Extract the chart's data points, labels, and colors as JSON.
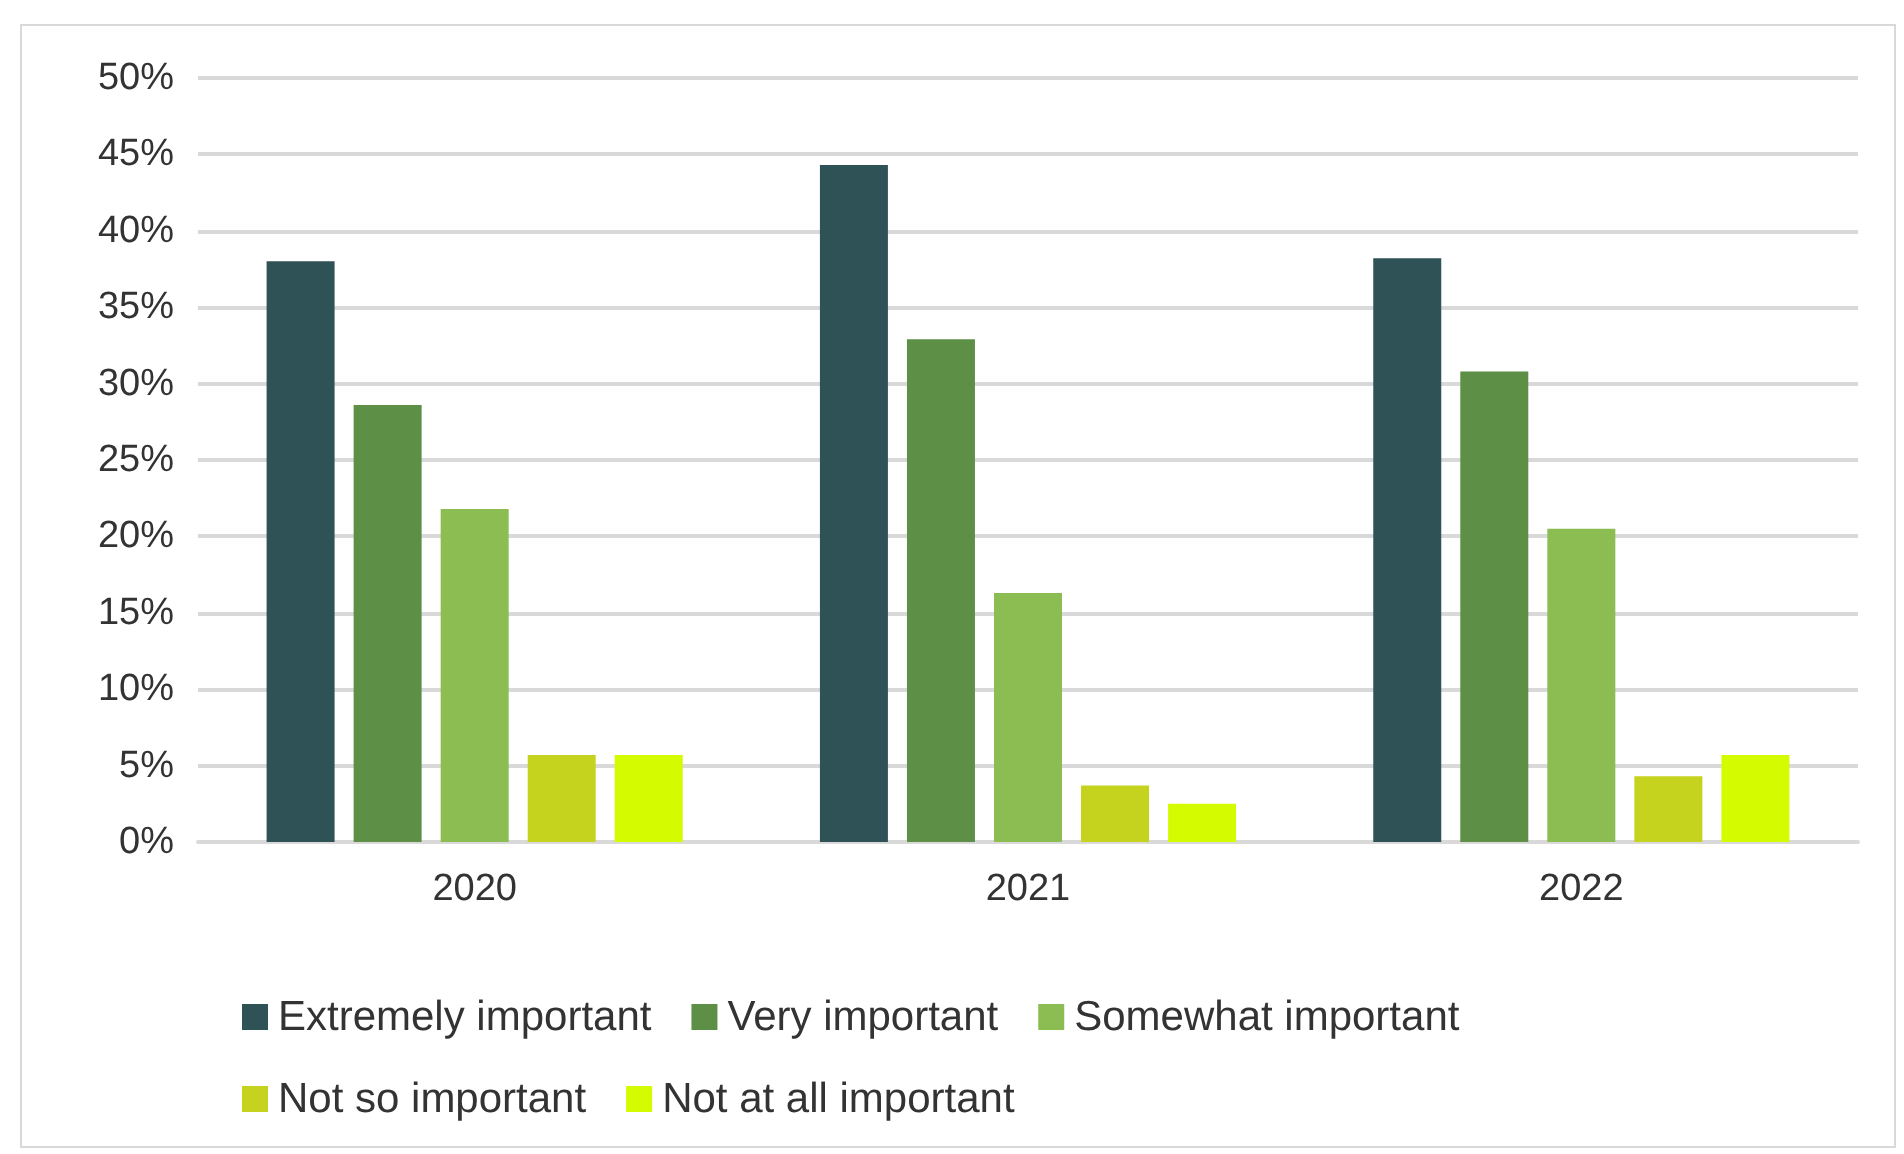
{
  "chart_data": {
    "type": "bar",
    "categories": [
      "2020",
      "2021",
      "2022"
    ],
    "series": [
      {
        "name": "Extremely important",
        "color": "#2f5257",
        "values": [
          38.0,
          44.3,
          38.2
        ]
      },
      {
        "name": "Very important",
        "color": "#5d8f46",
        "values": [
          28.6,
          32.9,
          30.8
        ]
      },
      {
        "name": "Somewhat important",
        "color": "#8cbd52",
        "values": [
          21.8,
          16.3,
          20.5
        ]
      },
      {
        "name": "Not so important",
        "color": "#c5d31f",
        "values": [
          5.7,
          3.7,
          4.3
        ]
      },
      {
        "name": "Not at all important",
        "color": "#d4fb00",
        "values": [
          5.7,
          2.5,
          5.7
        ]
      }
    ],
    "ylim": [
      0,
      50
    ],
    "yticks": [
      {
        "value": 0,
        "label": "0%"
      },
      {
        "value": 5,
        "label": "5%"
      },
      {
        "value": 10,
        "label": "10%"
      },
      {
        "value": 15,
        "label": "15%"
      },
      {
        "value": 20,
        "label": "20%"
      },
      {
        "value": 25,
        "label": "25%"
      },
      {
        "value": 30,
        "label": "30%"
      },
      {
        "value": 35,
        "label": "35%"
      },
      {
        "value": 40,
        "label": "40%"
      },
      {
        "value": 45,
        "label": "45%"
      },
      {
        "value": 50,
        "label": "50%"
      }
    ],
    "grid": "y",
    "legend": "bottom"
  }
}
